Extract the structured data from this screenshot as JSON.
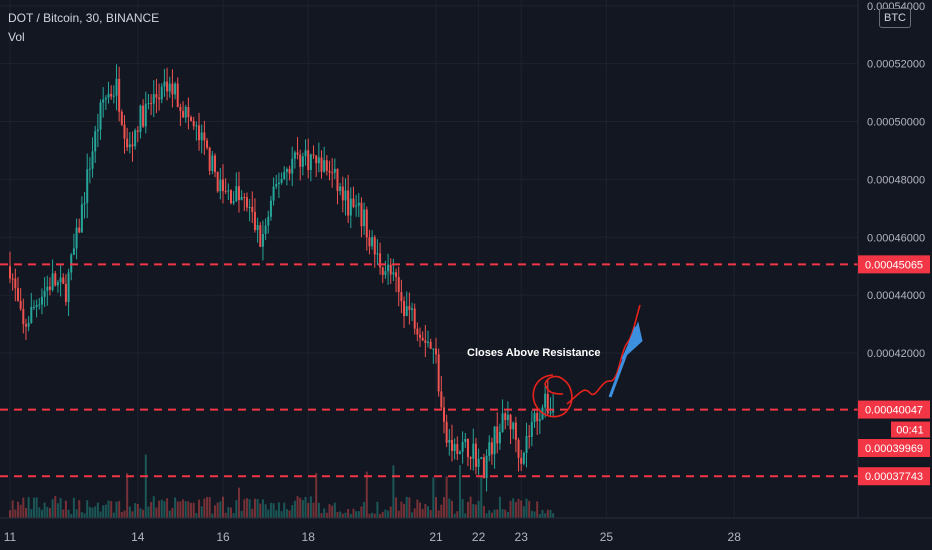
{
  "header": {
    "title": "DOT / Bitcoin, 30, BINANCE",
    "volume_label": "Vol",
    "unit_badge": "BTC"
  },
  "colors": {
    "background": "#131722",
    "up": "#26a69a",
    "down": "#ef5350",
    "level_line": "#f23645",
    "label_bg": "#f23645",
    "annotation_red": "#e8221b",
    "annotation_arrow": "#3d8fe0",
    "axis_text": "#b2b5be"
  },
  "chart_data": {
    "type": "candlestick",
    "symbol": "DOT / Bitcoin",
    "interval": "30",
    "exchange": "BINANCE",
    "ylim": [
      0.000363,
      0.000542
    ],
    "y_ticks": [
      "0.00042000",
      "0.00044000",
      "0.00046000",
      "0.00048000",
      "0.00050000",
      "0.00052000",
      "0.00054000"
    ],
    "x_ticks": [
      "11",
      "14",
      "16",
      "18",
      "21",
      "22",
      "23",
      "25",
      "28"
    ],
    "levels": [
      {
        "label": "0.00045065",
        "value": 0.00045065
      },
      {
        "label": "0.00040047",
        "value": 0.00040047
      },
      {
        "label": "0.00037743",
        "value": 0.00037743
      }
    ],
    "last_price": {
      "label": "0.00039969",
      "countdown": "00:41"
    },
    "annotation": "Closes Above Resistance",
    "path": [
      [
        11.0,
        0.00045
      ],
      [
        11.3,
        0.000428
      ],
      [
        11.7,
        0.00044
      ],
      [
        12.0,
        0.000445
      ],
      [
        12.3,
        0.000441
      ],
      [
        12.6,
        0.000462
      ],
      [
        12.9,
        0.000488
      ],
      [
        13.2,
        0.000508
      ],
      [
        13.5,
        0.000512
      ],
      [
        13.8,
        0.00049
      ],
      [
        14.0,
        0.0005
      ],
      [
        14.4,
        0.000508
      ],
      [
        14.8,
        0.000512
      ],
      [
        15.3,
        0.000498
      ],
      [
        15.6,
        0.00049
      ],
      [
        16.0,
        0.000475
      ],
      [
        16.3,
        0.000475
      ],
      [
        16.6,
        0.00047
      ],
      [
        16.9,
        0.000458
      ],
      [
        17.3,
        0.00048
      ],
      [
        17.7,
        0.000488
      ],
      [
        18.1,
        0.000487
      ],
      [
        18.5,
        0.000483
      ],
      [
        18.9,
        0.000472
      ],
      [
        19.3,
        0.000466
      ],
      [
        19.6,
        0.000453
      ],
      [
        19.9,
        0.000448
      ],
      [
        20.2,
        0.000438
      ],
      [
        20.5,
        0.000432
      ],
      [
        20.8,
        0.000425
      ],
      [
        21.0,
        0.000418
      ],
      [
        21.2,
        0.000391
      ],
      [
        21.5,
        0.000385
      ],
      [
        21.8,
        0.000388
      ],
      [
        22.1,
        0.00038
      ],
      [
        22.4,
        0.000392
      ],
      [
        22.7,
        0.000398
      ],
      [
        23.0,
        0.000385
      ],
      [
        23.3,
        0.000397
      ],
      [
        23.5,
        0.000402
      ],
      [
        23.8,
        0.000401
      ]
    ]
  }
}
